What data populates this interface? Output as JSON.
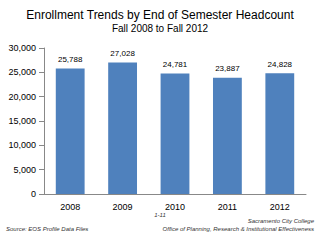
{
  "chart_data": {
    "type": "bar",
    "title": "Enrollment Trends by End of Semester Headcount",
    "subtitle": "Fall 2008 to Fall 2012",
    "categories": [
      "2008",
      "2009",
      "2010",
      "2011",
      "2012"
    ],
    "values": [
      25788,
      27028,
      24781,
      23887,
      24828
    ],
    "value_labels": [
      "25,788",
      "27,028",
      "24,781",
      "23,887",
      "24,828"
    ],
    "color": "#4f81bd",
    "ylim": [
      0,
      30000
    ],
    "yticks": [
      0,
      {
        "value": 5000,
        "label": "5,000"
      },
      {
        "value": 10000,
        "label": "10,000"
      },
      {
        "value": 15000,
        "label": "15,000"
      },
      {
        "value": 20000,
        "label": "20,000"
      },
      {
        "value": 25000,
        "label": "25,000"
      },
      {
        "value": 30000,
        "label": "30,000"
      }
    ],
    "grid": false,
    "data_labels": true,
    "annotations": [
      "Source: EOS Profile Data Files",
      "1-11",
      "Sacramento City College",
      "Office of Planning, Research & Institutional Effectiveness"
    ]
  }
}
